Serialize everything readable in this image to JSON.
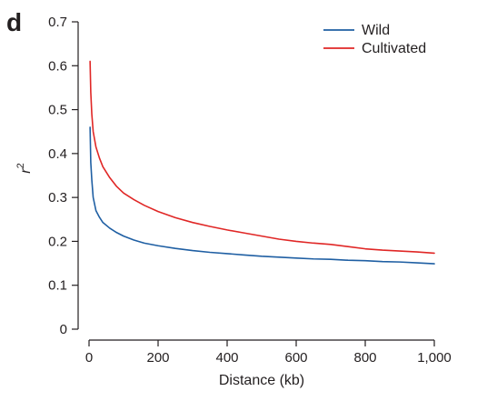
{
  "panel_label": "d",
  "chart_data": {
    "type": "line",
    "title": "",
    "xlabel": "Distance (kb)",
    "ylabel": "r",
    "ylabel_superscript": "2",
    "xlim": [
      0,
      1000
    ],
    "ylim": [
      0,
      0.7
    ],
    "xticks": [
      0,
      200,
      400,
      600,
      800,
      1000
    ],
    "xtick_labels": [
      "0",
      "200",
      "400",
      "600",
      "800",
      "1,000"
    ],
    "yticks": [
      0,
      0.1,
      0.2,
      0.3,
      0.4,
      0.5,
      0.6,
      0.7
    ],
    "ytick_labels": [
      "0",
      "0.1",
      "0.2",
      "0.3",
      "0.4",
      "0.5",
      "0.6",
      "0.7"
    ],
    "grid": false,
    "legend_position": "top-right",
    "series": [
      {
        "name": "Wild",
        "color": "#1f5fa3",
        "x": [
          3,
          5,
          8,
          12,
          20,
          30,
          40,
          60,
          80,
          100,
          130,
          160,
          200,
          250,
          300,
          350,
          400,
          450,
          500,
          550,
          600,
          650,
          700,
          750,
          800,
          850,
          900,
          950,
          1000
        ],
        "y": [
          0.46,
          0.38,
          0.34,
          0.3,
          0.27,
          0.255,
          0.243,
          0.23,
          0.22,
          0.212,
          0.203,
          0.196,
          0.19,
          0.184,
          0.179,
          0.175,
          0.172,
          0.169,
          0.166,
          0.164,
          0.162,
          0.16,
          0.159,
          0.157,
          0.156,
          0.154,
          0.153,
          0.151,
          0.149
        ]
      },
      {
        "name": "Cultivated",
        "color": "#e02726",
        "x": [
          3,
          5,
          8,
          12,
          20,
          30,
          40,
          60,
          80,
          100,
          130,
          160,
          200,
          250,
          300,
          350,
          400,
          450,
          500,
          550,
          600,
          650,
          700,
          750,
          800,
          850,
          900,
          950,
          1000
        ],
        "y": [
          0.61,
          0.54,
          0.49,
          0.45,
          0.415,
          0.39,
          0.37,
          0.345,
          0.325,
          0.31,
          0.295,
          0.282,
          0.268,
          0.254,
          0.243,
          0.234,
          0.226,
          0.219,
          0.212,
          0.205,
          0.2,
          0.196,
          0.193,
          0.188,
          0.183,
          0.18,
          0.178,
          0.176,
          0.173
        ]
      }
    ]
  }
}
